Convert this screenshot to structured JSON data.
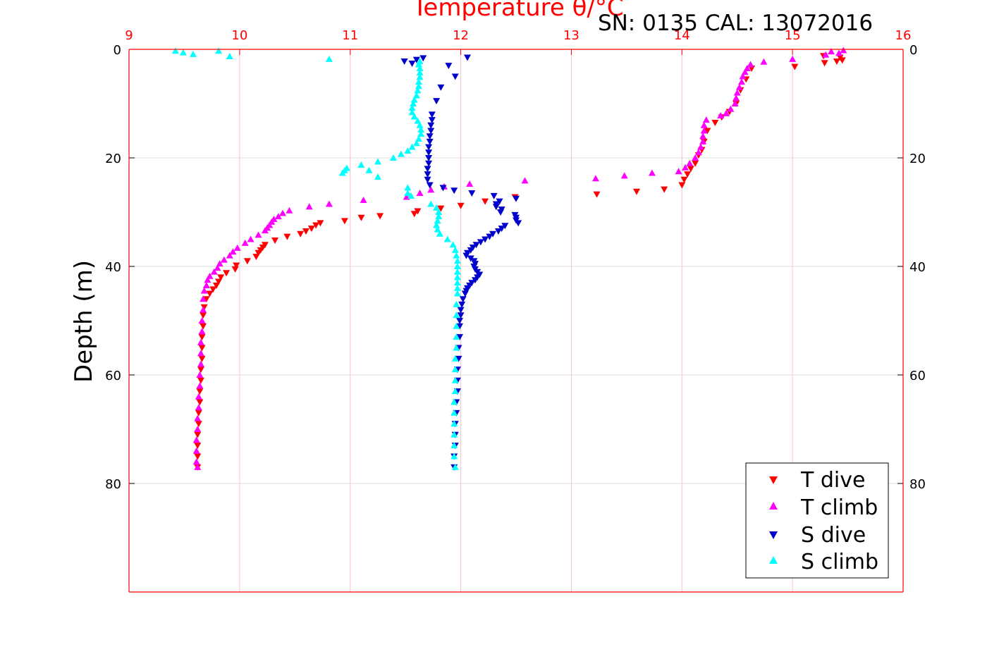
{
  "chart_data": {
    "type": "scatter",
    "title": "Temperature θ/°C",
    "subtitle": "SN: 0135  CAL: 13072016",
    "ylabel": "Depth (m)",
    "xlim": [
      9,
      16
    ],
    "ylim": [
      0,
      100
    ],
    "y_inverted": true,
    "xticks": [
      "9",
      "10",
      "11",
      "12",
      "13",
      "14",
      "15",
      "16"
    ],
    "yticks_left": [
      "0",
      "20",
      "40",
      "60",
      "80"
    ],
    "yticks_right": [
      "0",
      "20",
      "40",
      "60",
      "80"
    ],
    "x_axis_position": "top",
    "grid": true,
    "legend_position": "bottom-right",
    "colors": {
      "t_dive": "#ff0000",
      "t_climb": "#ff00ff",
      "s_dive": "#0000cc",
      "s_climb": "#00ffff",
      "axis_top": "#ff0000",
      "grid_x": "#f5c6d0",
      "grid_y": "#dcdcdc"
    },
    "series": [
      {
        "name": "T dive",
        "marker": "triangle-down",
        "color": "#ff0000",
        "points": [
          [
            15.43,
            1.5
          ],
          [
            15.45,
            2
          ],
          [
            15.4,
            2.2
          ],
          [
            15.28,
            1.2
          ],
          [
            15.29,
            2.5
          ],
          [
            15.02,
            3.2
          ],
          [
            14.63,
            3.5
          ],
          [
            14.58,
            5.5
          ],
          [
            14.53,
            7.5
          ],
          [
            14.49,
            10
          ],
          [
            14.43,
            11.5
          ],
          [
            14.36,
            12.5
          ],
          [
            14.3,
            13.5
          ],
          [
            14.23,
            15
          ],
          [
            14.2,
            17
          ],
          [
            14.18,
            18.5
          ],
          [
            14.15,
            19.5
          ],
          [
            14.12,
            21
          ],
          [
            14.08,
            22
          ],
          [
            14.05,
            23
          ],
          [
            14.02,
            24
          ],
          [
            14.0,
            25
          ],
          [
            13.84,
            25.8
          ],
          [
            13.59,
            26.2
          ],
          [
            13.23,
            26.7
          ],
          [
            12.49,
            27.2
          ],
          [
            12.22,
            28
          ],
          [
            12.0,
            28.8
          ],
          [
            11.82,
            29.3
          ],
          [
            11.61,
            29.8
          ],
          [
            11.58,
            30.3
          ],
          [
            11.27,
            30.7
          ],
          [
            11.1,
            31
          ],
          [
            10.95,
            31.6
          ],
          [
            10.73,
            32
          ],
          [
            10.69,
            32.4
          ],
          [
            10.65,
            33
          ],
          [
            10.6,
            33.5
          ],
          [
            10.55,
            34
          ],
          [
            10.43,
            34.5
          ],
          [
            10.32,
            35.2
          ],
          [
            10.23,
            36
          ],
          [
            10.21,
            36.5
          ],
          [
            10.19,
            37
          ],
          [
            10.17,
            37.5
          ],
          [
            10.15,
            38.2
          ],
          [
            10.07,
            39
          ],
          [
            9.97,
            39.8
          ],
          [
            9.96,
            40.5
          ],
          [
            9.88,
            41.2
          ],
          [
            9.83,
            42
          ],
          [
            9.81,
            42.8
          ],
          [
            9.79,
            43.5
          ],
          [
            9.76,
            44.2
          ],
          [
            9.73,
            45
          ],
          [
            9.7,
            46
          ],
          [
            9.68,
            47.5
          ],
          [
            9.67,
            49
          ],
          [
            9.67,
            51
          ],
          [
            9.66,
            53
          ],
          [
            9.66,
            55
          ],
          [
            9.66,
            57
          ],
          [
            9.65,
            59
          ],
          [
            9.65,
            61
          ],
          [
            9.64,
            63
          ],
          [
            9.64,
            65
          ],
          [
            9.63,
            67
          ],
          [
            9.63,
            69
          ],
          [
            9.62,
            71
          ],
          [
            9.62,
            73
          ],
          [
            9.62,
            75
          ],
          [
            9.62,
            77
          ]
        ]
      },
      {
        "name": "T climb",
        "marker": "triangle-up",
        "color": "#ff00ff",
        "points": [
          [
            15.46,
            0.2
          ],
          [
            15.35,
            0.4
          ],
          [
            15.42,
            0.7
          ],
          [
            15.3,
            1
          ],
          [
            15.0,
            1.8
          ],
          [
            14.74,
            2.3
          ],
          [
            14.62,
            2.8
          ],
          [
            14.59,
            3.5
          ],
          [
            14.57,
            4.2
          ],
          [
            14.55,
            5
          ],
          [
            14.54,
            6
          ],
          [
            14.52,
            7
          ],
          [
            14.5,
            8
          ],
          [
            14.49,
            9
          ],
          [
            14.48,
            10
          ],
          [
            14.44,
            11
          ],
          [
            14.4,
            11.8
          ],
          [
            14.35,
            12.2
          ],
          [
            14.22,
            13
          ],
          [
            14.2,
            14
          ],
          [
            14.2,
            15
          ],
          [
            14.19,
            16
          ],
          [
            14.19,
            17
          ],
          [
            14.17,
            18
          ],
          [
            14.15,
            19
          ],
          [
            14.12,
            20
          ],
          [
            14.07,
            21
          ],
          [
            14.03,
            21.8
          ],
          [
            13.97,
            22.5
          ],
          [
            13.73,
            22.8
          ],
          [
            13.48,
            23.3
          ],
          [
            13.22,
            23.8
          ],
          [
            12.58,
            24.2
          ],
          [
            12.08,
            24.8
          ],
          [
            11.85,
            25.3
          ],
          [
            11.73,
            25.9
          ],
          [
            11.63,
            26.5
          ],
          [
            11.51,
            27.2
          ],
          [
            11.12,
            27.8
          ],
          [
            10.81,
            28.5
          ],
          [
            10.63,
            29
          ],
          [
            10.45,
            29.7
          ],
          [
            10.39,
            30.2
          ],
          [
            10.35,
            30.8
          ],
          [
            10.31,
            31.3
          ],
          [
            10.29,
            31.8
          ],
          [
            10.27,
            32.4
          ],
          [
            10.25,
            32.9
          ],
          [
            10.23,
            33.4
          ],
          [
            10.17,
            34.2
          ],
          [
            10.1,
            35
          ],
          [
            10.05,
            35.7
          ],
          [
            9.98,
            36.6
          ],
          [
            9.94,
            37.3
          ],
          [
            9.91,
            38
          ],
          [
            9.86,
            38.8
          ],
          [
            9.82,
            39.5
          ],
          [
            9.8,
            40.3
          ],
          [
            9.77,
            41
          ],
          [
            9.73,
            41.8
          ],
          [
            9.71,
            42.5
          ],
          [
            9.7,
            43.5
          ],
          [
            9.68,
            44.5
          ],
          [
            9.67,
            46
          ],
          [
            9.67,
            48
          ],
          [
            9.66,
            50
          ],
          [
            9.66,
            52
          ],
          [
            9.65,
            54
          ],
          [
            9.65,
            56
          ],
          [
            9.65,
            58
          ],
          [
            9.64,
            60
          ],
          [
            9.64,
            62
          ],
          [
            9.63,
            64
          ],
          [
            9.63,
            66
          ],
          [
            9.62,
            68
          ],
          [
            9.62,
            70
          ],
          [
            9.61,
            72
          ],
          [
            9.61,
            74
          ],
          [
            9.61,
            76
          ],
          [
            9.62,
            77
          ]
        ]
      },
      {
        "name": "S dive",
        "marker": "triangle-down",
        "color": "#0000cc",
        "points": [
          [
            12.06,
            1.5
          ],
          [
            11.66,
            1.6
          ],
          [
            11.6,
            1.9
          ],
          [
            11.49,
            2.2
          ],
          [
            11.56,
            2.6
          ],
          [
            11.89,
            3
          ],
          [
            11.95,
            5
          ],
          [
            11.82,
            7
          ],
          [
            11.78,
            9.5
          ],
          [
            11.74,
            12
          ],
          [
            11.74,
            13
          ],
          [
            11.73,
            14
          ],
          [
            11.73,
            15
          ],
          [
            11.72,
            16
          ],
          [
            11.72,
            17
          ],
          [
            11.71,
            18
          ],
          [
            11.71,
            19
          ],
          [
            11.71,
            20
          ],
          [
            11.71,
            21
          ],
          [
            11.7,
            22
          ],
          [
            11.7,
            23
          ],
          [
            11.7,
            24
          ],
          [
            11.72,
            25
          ],
          [
            11.84,
            25.5
          ],
          [
            11.94,
            26
          ],
          [
            12.1,
            26.5
          ],
          [
            12.3,
            27
          ],
          [
            12.5,
            27.5
          ],
          [
            12.35,
            28
          ],
          [
            12.32,
            28.5
          ],
          [
            12.32,
            29
          ],
          [
            12.37,
            29.5
          ],
          [
            12.36,
            30
          ],
          [
            12.49,
            30.5
          ],
          [
            12.5,
            31
          ],
          [
            12.5,
            31.5
          ],
          [
            12.52,
            32
          ],
          [
            12.4,
            32.5
          ],
          [
            12.37,
            33
          ],
          [
            12.34,
            33.5
          ],
          [
            12.29,
            34
          ],
          [
            12.26,
            34.5
          ],
          [
            12.22,
            35
          ],
          [
            12.18,
            35.5
          ],
          [
            12.14,
            36
          ],
          [
            12.11,
            36.5
          ],
          [
            12.09,
            37
          ],
          [
            12.06,
            37.5
          ],
          [
            12.05,
            38
          ],
          [
            12.09,
            38.5
          ],
          [
            12.12,
            39
          ],
          [
            12.13,
            39.5
          ],
          [
            12.12,
            40
          ],
          [
            12.13,
            40.5
          ],
          [
            12.15,
            41
          ],
          [
            12.17,
            41.5
          ],
          [
            12.15,
            42
          ],
          [
            12.13,
            42.5
          ],
          [
            12.1,
            43
          ],
          [
            12.08,
            43.5
          ],
          [
            12.06,
            44
          ],
          [
            12.05,
            44.5
          ],
          [
            12.04,
            45
          ],
          [
            12.02,
            46
          ],
          [
            12.01,
            47
          ],
          [
            12.0,
            48
          ],
          [
            12.0,
            49
          ],
          [
            11.99,
            50
          ],
          [
            11.99,
            51
          ],
          [
            11.99,
            53
          ],
          [
            11.98,
            55
          ],
          [
            11.98,
            57
          ],
          [
            11.97,
            59
          ],
          [
            11.97,
            61
          ],
          [
            11.97,
            63
          ],
          [
            11.96,
            65
          ],
          [
            11.96,
            67
          ],
          [
            11.95,
            69
          ],
          [
            11.95,
            71
          ],
          [
            11.95,
            73
          ],
          [
            11.94,
            75
          ],
          [
            11.94,
            77
          ]
        ]
      },
      {
        "name": "S climb",
        "marker": "triangle-up",
        "color": "#00ffff",
        "points": [
          [
            9.42,
            0.3
          ],
          [
            9.49,
            0.6
          ],
          [
            9.81,
            0.3
          ],
          [
            9.58,
            0.9
          ],
          [
            9.91,
            1.3
          ],
          [
            10.81,
            1.8
          ],
          [
            11.63,
            2.2
          ],
          [
            11.62,
            2.8
          ],
          [
            11.63,
            3.5
          ],
          [
            11.63,
            4.3
          ],
          [
            11.63,
            5.1
          ],
          [
            11.62,
            6
          ],
          [
            11.62,
            6.8
          ],
          [
            11.61,
            7.6
          ],
          [
            11.6,
            8.5
          ],
          [
            11.58,
            9.3
          ],
          [
            11.57,
            10
          ],
          [
            11.56,
            10.8
          ],
          [
            11.56,
            11.6
          ],
          [
            11.58,
            12.4
          ],
          [
            11.61,
            13.2
          ],
          [
            11.63,
            14
          ],
          [
            11.64,
            14.8
          ],
          [
            11.64,
            15.6
          ],
          [
            11.62,
            16.5
          ],
          [
            11.6,
            17.3
          ],
          [
            11.56,
            18
          ],
          [
            11.52,
            18.7
          ],
          [
            11.46,
            19.3
          ],
          [
            11.39,
            20
          ],
          [
            11.25,
            20.7
          ],
          [
            11.1,
            21.3
          ],
          [
            10.97,
            21.9
          ],
          [
            10.95,
            22.3
          ],
          [
            10.93,
            22.8
          ],
          [
            11.17,
            22.3
          ],
          [
            11.25,
            23.5
          ],
          [
            11.52,
            25.5
          ],
          [
            11.52,
            26.5
          ],
          [
            11.55,
            27
          ],
          [
            11.73,
            28.5
          ],
          [
            11.78,
            29.2
          ],
          [
            11.8,
            30
          ],
          [
            11.8,
            30.8
          ],
          [
            11.79,
            31.6
          ],
          [
            11.78,
            32.4
          ],
          [
            11.79,
            33.2
          ],
          [
            11.81,
            34
          ],
          [
            11.88,
            35
          ],
          [
            11.93,
            36
          ],
          [
            11.95,
            37
          ],
          [
            11.96,
            38
          ],
          [
            11.97,
            39
          ],
          [
            11.97,
            40
          ],
          [
            11.97,
            41
          ],
          [
            11.97,
            42
          ],
          [
            11.97,
            43
          ],
          [
            11.97,
            44
          ],
          [
            11.97,
            45
          ],
          [
            11.96,
            47
          ],
          [
            11.96,
            49
          ],
          [
            11.96,
            51
          ],
          [
            11.96,
            53
          ],
          [
            11.96,
            55
          ],
          [
            11.95,
            57
          ],
          [
            11.95,
            59
          ],
          [
            11.95,
            61
          ],
          [
            11.95,
            63
          ],
          [
            11.94,
            65
          ],
          [
            11.94,
            67
          ],
          [
            11.94,
            69
          ],
          [
            11.94,
            71
          ],
          [
            11.94,
            73
          ],
          [
            11.94,
            75
          ],
          [
            11.95,
            77
          ]
        ]
      }
    ]
  }
}
